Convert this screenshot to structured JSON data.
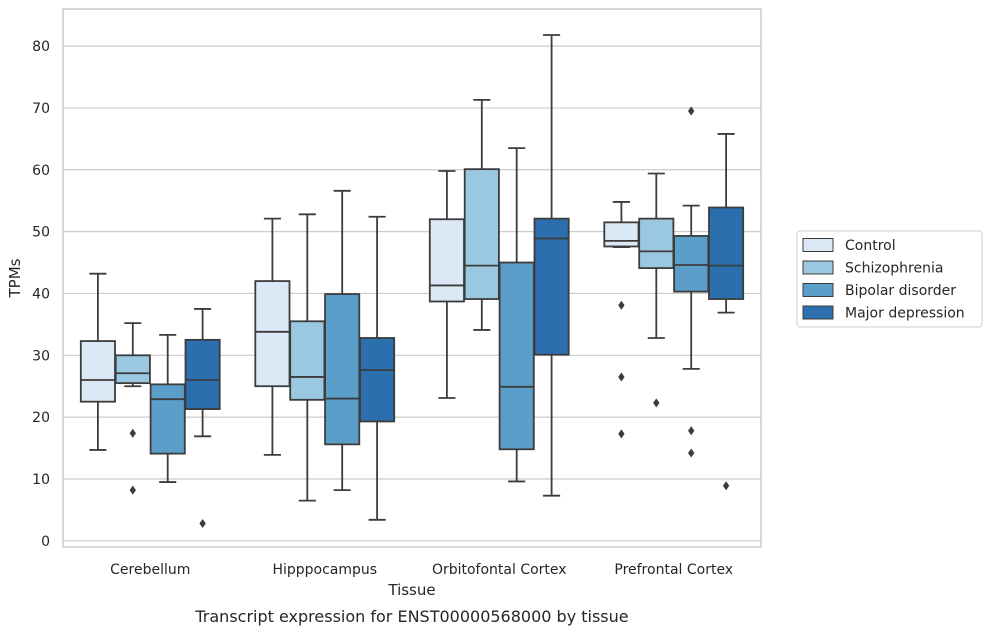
{
  "caption": "Transcript expression for ENST00000568000 by tissue",
  "chart_data": {
    "type": "box",
    "xlabel": "Tissue",
    "ylabel": "TPMs",
    "ylim": [
      -1,
      86
    ],
    "yticks": [
      0,
      10,
      20,
      30,
      40,
      50,
      60,
      70,
      80
    ],
    "grid": true,
    "legend_position": "right",
    "categories": [
      "Cerebellum",
      "Hipppocampus",
      "Orbitofontal Cortex",
      "Prefrontal Cortex"
    ],
    "series": [
      {
        "name": "Control",
        "color": "#dbe9f6",
        "boxes": [
          {
            "whisker_low": 14.7,
            "q1": 22.5,
            "median": 26.0,
            "q3": 32.3,
            "whisker_high": 43.2,
            "outliers": []
          },
          {
            "whisker_low": 13.9,
            "q1": 25.0,
            "median": 33.8,
            "q3": 42.0,
            "whisker_high": 52.1,
            "outliers": []
          },
          {
            "whisker_low": 23.1,
            "q1": 38.7,
            "median": 41.3,
            "q3": 52.0,
            "whisker_high": 59.8,
            "outliers": []
          },
          {
            "whisker_low": 47.5,
            "q1": 47.6,
            "median": 48.5,
            "q3": 51.5,
            "whisker_high": 54.8,
            "outliers": [
              38.1,
              26.5,
              17.3
            ]
          }
        ]
      },
      {
        "name": "Schizophrenia",
        "color": "#9ac8e0",
        "boxes": [
          {
            "whisker_low": 25.0,
            "q1": 25.5,
            "median": 27.1,
            "q3": 30.0,
            "whisker_high": 35.2,
            "outliers": [
              17.4,
              8.2
            ]
          },
          {
            "whisker_low": 6.5,
            "q1": 22.8,
            "median": 26.5,
            "q3": 35.5,
            "whisker_high": 52.8,
            "outliers": []
          },
          {
            "whisker_low": 34.1,
            "q1": 39.1,
            "median": 44.5,
            "q3": 60.1,
            "whisker_high": 71.3,
            "outliers": []
          },
          {
            "whisker_low": 32.8,
            "q1": 44.1,
            "median": 46.8,
            "q3": 52.1,
            "whisker_high": 59.4,
            "outliers": [
              22.3
            ]
          }
        ]
      },
      {
        "name": "Bipolar disorder",
        "color": "#5a9ec9",
        "boxes": [
          {
            "whisker_low": 9.5,
            "q1": 14.1,
            "median": 22.9,
            "q3": 25.3,
            "whisker_high": 33.3,
            "outliers": []
          },
          {
            "whisker_low": 8.2,
            "q1": 15.6,
            "median": 23.0,
            "q3": 39.9,
            "whisker_high": 56.6,
            "outliers": []
          },
          {
            "whisker_low": 9.6,
            "q1": 14.8,
            "median": 24.9,
            "q3": 45.0,
            "whisker_high": 63.5,
            "outliers": []
          },
          {
            "whisker_low": 27.8,
            "q1": 40.3,
            "median": 44.6,
            "q3": 49.3,
            "whisker_high": 54.2,
            "outliers": [
              69.5,
              17.8,
              14.2
            ]
          }
        ]
      },
      {
        "name": "Major depression",
        "color": "#2b6faf",
        "boxes": [
          {
            "whisker_low": 16.9,
            "q1": 21.3,
            "median": 26.0,
            "q3": 32.5,
            "whisker_high": 37.5,
            "outliers": [
              2.8
            ]
          },
          {
            "whisker_low": 3.4,
            "q1": 19.3,
            "median": 27.6,
            "q3": 32.8,
            "whisker_high": 52.4,
            "outliers": []
          },
          {
            "whisker_low": 7.3,
            "q1": 30.1,
            "median": 48.9,
            "q3": 52.1,
            "whisker_high": 81.8,
            "outliers": []
          },
          {
            "whisker_low": 36.9,
            "q1": 39.1,
            "median": 44.5,
            "q3": 53.9,
            "whisker_high": 65.8,
            "outliers": [
              8.9
            ]
          }
        ]
      }
    ]
  }
}
